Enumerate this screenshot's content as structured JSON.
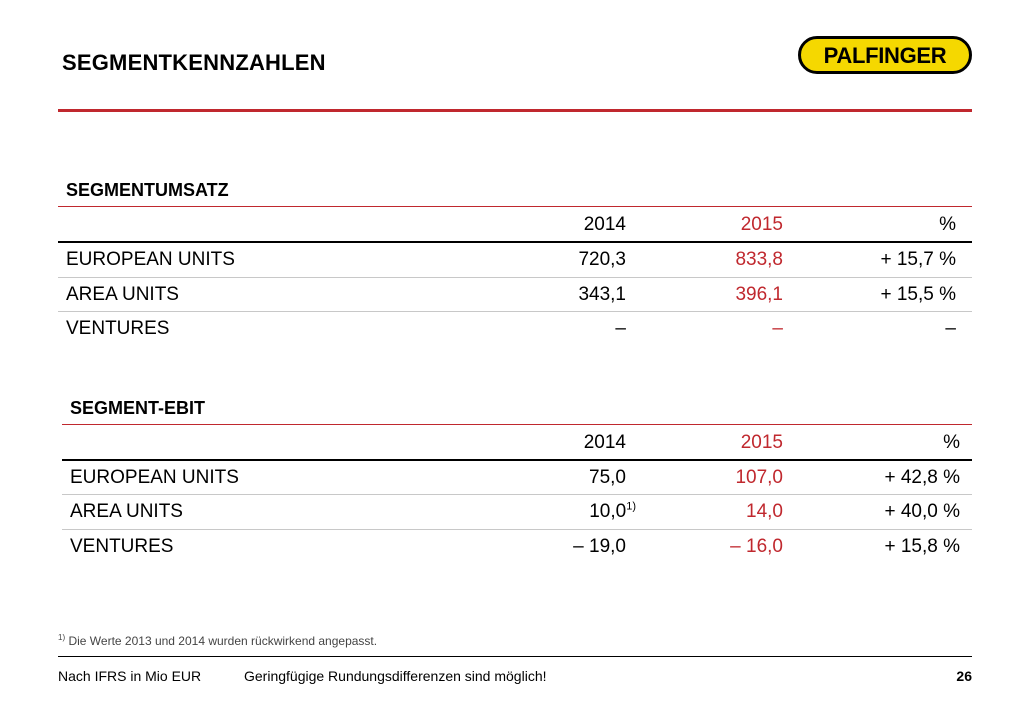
{
  "header": {
    "title": "SEGMENTKENNZAHLEN",
    "logo_text": "PALFINGER"
  },
  "colors": {
    "accent_red": "#c0282e",
    "logo_yellow": "#f5d800"
  },
  "table1": {
    "title": "SEGMENTUMSATZ",
    "columns": [
      "2014",
      "2015",
      "%"
    ],
    "rows": [
      {
        "label": "EUROPEAN UNITS",
        "y2014": "720,3",
        "y2015": "833,8",
        "pct": "+ 15,7 %"
      },
      {
        "label": "AREA UNITS",
        "y2014": "343,1",
        "y2015": "396,1",
        "pct": "+ 15,5 %"
      },
      {
        "label": "VENTURES",
        "y2014": "–",
        "y2015": "–",
        "pct": "–"
      }
    ]
  },
  "table2": {
    "title": "SEGMENT-EBIT",
    "columns": [
      "2014",
      "2015",
      "%"
    ],
    "rows": [
      {
        "label": "EUROPEAN UNITS",
        "y2014": "75,0",
        "y2015": "107,0",
        "pct": "+ 42,8 %"
      },
      {
        "label": "AREA UNITS",
        "y2014": "10,0",
        "y2014_footnote": "1)",
        "y2015": "14,0",
        "pct": "+ 40,0 %"
      },
      {
        "label": "VENTURES",
        "y2014": "– 19,0",
        "y2015": "– 16,0",
        "pct": "+ 15,8 %"
      }
    ]
  },
  "footnote": {
    "marker": "1)",
    "text": " Die Werte 2013 und 2014 wurden rückwirkend angepasst."
  },
  "footer": {
    "left": "Nach IFRS in Mio EUR",
    "middle": "Geringfügige Rundungsdifferenzen sind möglich!",
    "page_number": "26"
  }
}
